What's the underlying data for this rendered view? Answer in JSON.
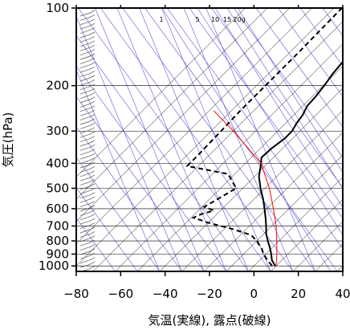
{
  "chart_data": {
    "type": "line",
    "title": "",
    "xlabel": "気温(実線), 露点(破線)",
    "ylabel": "気圧(hPa)",
    "xlim": [
      -80,
      40
    ],
    "ylim": [
      1050,
      100
    ],
    "y_scale": "log",
    "x_ticks": [
      -80,
      -60,
      -40,
      -20,
      0,
      20,
      40
    ],
    "x_tick_labels": [
      "−80",
      "−60",
      "−40",
      "−20",
      "0",
      "20",
      "40"
    ],
    "y_ticks": [
      100,
      200,
      300,
      400,
      500,
      600,
      700,
      800,
      900,
      1000
    ],
    "y_tick_labels": [
      "100",
      "200",
      "300",
      "400",
      "500",
      "600",
      "700",
      "800",
      "900",
      "1000"
    ],
    "mixing_ratio_labels": [
      "1",
      "5",
      "10",
      "15",
      "20g"
    ],
    "skew_angle_deg": 45,
    "series": [
      {
        "role": "temperature",
        "style": "solid",
        "color": "#000000",
        "points": [
          [
            9.6,
            1000
          ],
          [
            5.5,
            950
          ],
          [
            2.5,
            900
          ],
          [
            -1,
            850
          ],
          [
            -5,
            800
          ],
          [
            -9,
            750
          ],
          [
            -12.5,
            700
          ],
          [
            -16.5,
            650
          ],
          [
            -21,
            600
          ],
          [
            -26,
            550
          ],
          [
            -32,
            500
          ],
          [
            -38,
            450
          ],
          [
            -43,
            400
          ],
          [
            -45.4,
            380
          ],
          [
            -45,
            350
          ],
          [
            -43.5,
            320
          ],
          [
            -43.5,
            300
          ],
          [
            -45,
            280
          ],
          [
            -46,
            260
          ],
          [
            -48,
            240
          ],
          [
            -48.5,
            220
          ],
          [
            -49.5,
            200
          ],
          [
            -51,
            180
          ],
          [
            -52,
            160
          ],
          [
            -54,
            140
          ],
          [
            -55,
            130
          ],
          [
            -56,
            120
          ],
          [
            -57,
            110
          ],
          [
            -57,
            100
          ]
        ]
      },
      {
        "role": "dew_point",
        "style": "dashed",
        "color": "#000000",
        "points": [
          [
            8.2,
            1000
          ],
          [
            3.5,
            950
          ],
          [
            -1,
            900
          ],
          [
            -4,
            860
          ],
          [
            -7,
            830
          ],
          [
            -10,
            800
          ],
          [
            -15,
            760
          ],
          [
            -26,
            720
          ],
          [
            -40,
            680
          ],
          [
            -49,
            650
          ],
          [
            -47,
            630
          ],
          [
            -43,
            610
          ],
          [
            -49,
            590
          ],
          [
            -47,
            560
          ],
          [
            -43,
            500
          ],
          [
            -53,
            440
          ],
          [
            -75,
            410
          ],
          [
            -75,
            380
          ],
          [
            -75.5,
            300
          ],
          [
            -76,
            250
          ],
          [
            -76,
            200
          ],
          [
            -76,
            150
          ],
          [
            -76.5,
            100
          ]
        ]
      },
      {
        "role": "reference_adiabat",
        "style": "solid",
        "color": "#ff0000",
        "points": [
          [
            10,
            1000
          ],
          [
            5,
            900
          ],
          [
            -1,
            800
          ],
          [
            -8,
            700
          ],
          [
            -17,
            600
          ],
          [
            -28,
            500
          ],
          [
            -43,
            400
          ],
          [
            -70,
            300
          ],
          [
            -88,
            250
          ]
        ]
      }
    ]
  }
}
